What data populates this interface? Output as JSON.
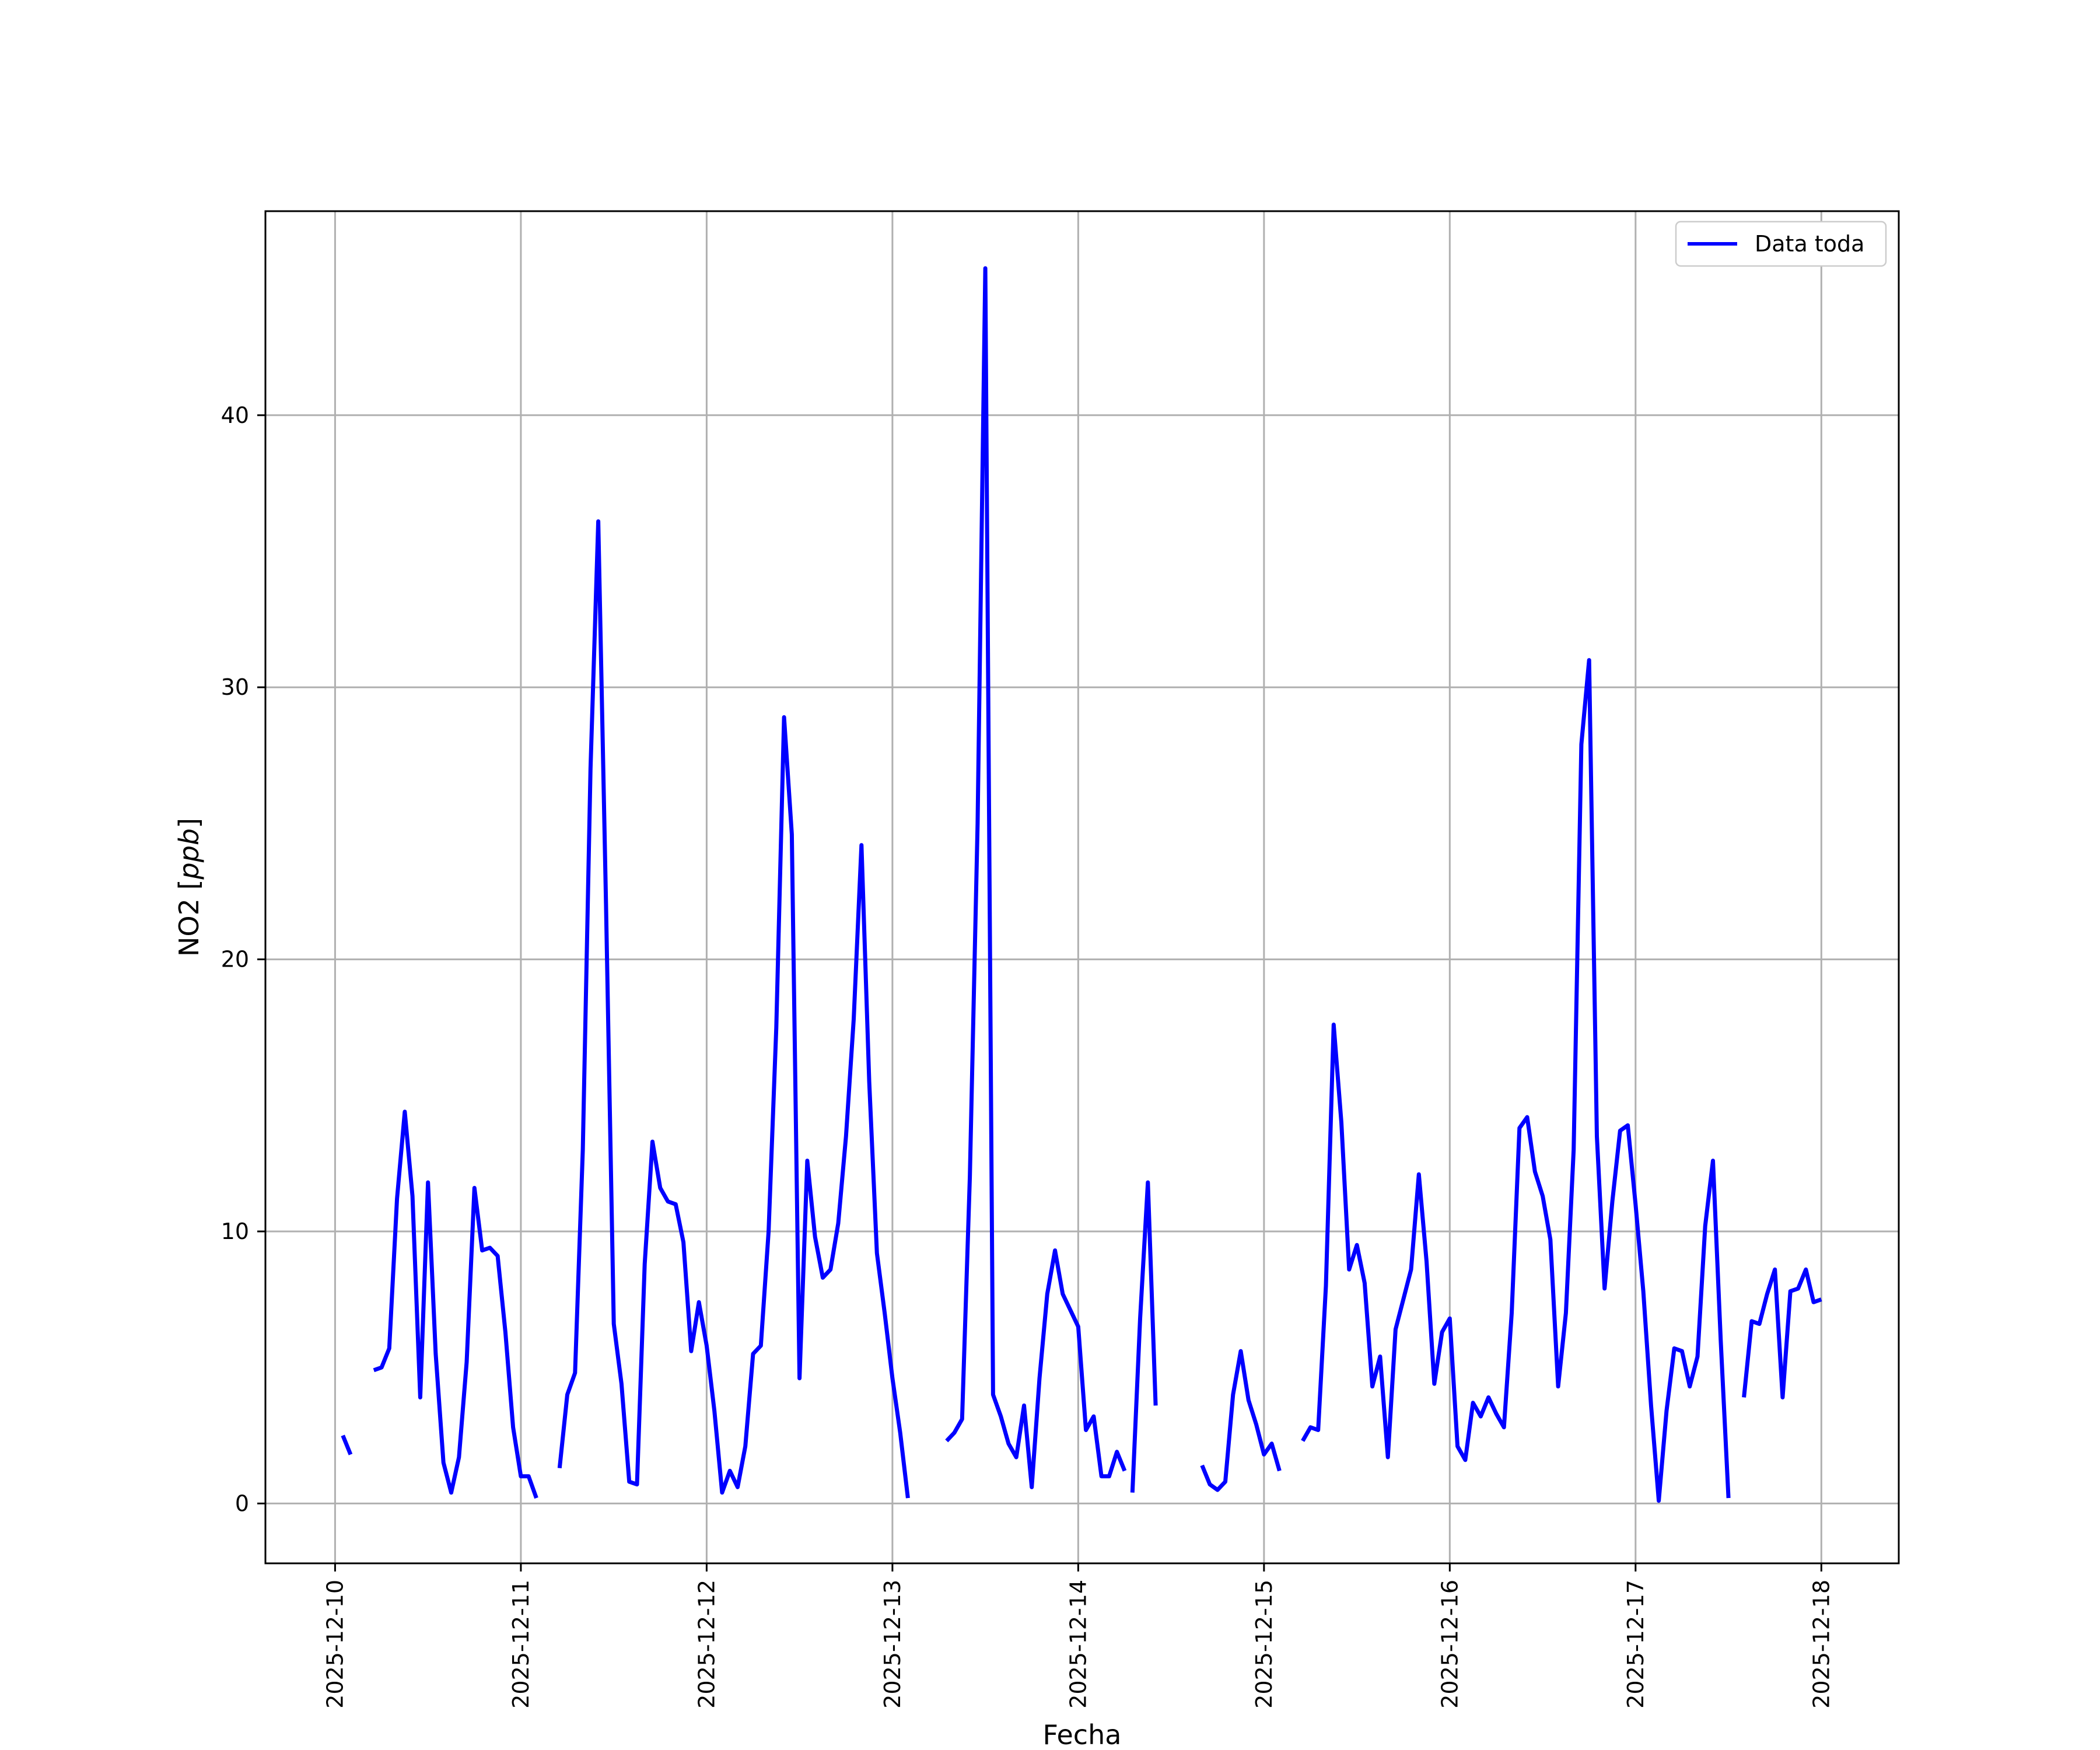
{
  "chart_data": {
    "type": "line",
    "title": "",
    "xlabel": "Fecha",
    "ylabel": "NO2 [ppb]",
    "ylabel_main": "NO2 [",
    "ylabel_unit": "ppb",
    "ylabel_close": "]",
    "x_type": "date",
    "xlim": [
      "2025-12-09 15:00",
      "2025-12-18 10:00"
    ],
    "ylim": [
      -2.2,
      47.5
    ],
    "grid": true,
    "legend_position": "top-right",
    "x_ticks": [
      "2025-12-10",
      "2025-12-11",
      "2025-12-12",
      "2025-12-13",
      "2025-12-14",
      "2025-12-15",
      "2025-12-16",
      "2025-12-17",
      "2025-12-18"
    ],
    "y_ticks": [
      0,
      10,
      20,
      30,
      40
    ],
    "line_color": "#0000ff",
    "series": [
      {
        "name": "Data toda",
        "segments": [
          [
            [
              "2025-12-10 01:00",
              2.5
            ],
            [
              "2025-12-10 02:00",
              1.8
            ]
          ],
          [
            [
              "2025-12-10 05:00",
              4.9
            ],
            [
              "2025-12-10 06:00",
              5.0
            ],
            [
              "2025-12-10 07:00",
              5.7
            ],
            [
              "2025-12-10 08:00",
              11.2
            ],
            [
              "2025-12-10 09:00",
              14.4
            ],
            [
              "2025-12-10 10:00",
              11.3
            ],
            [
              "2025-12-10 11:00",
              3.9
            ],
            [
              "2025-12-10 12:00",
              11.8
            ],
            [
              "2025-12-10 13:00",
              5.5
            ],
            [
              "2025-12-10 14:00",
              1.5
            ],
            [
              "2025-12-10 15:00",
              0.4
            ],
            [
              "2025-12-10 16:00",
              1.7
            ],
            [
              "2025-12-10 17:00",
              5.2
            ],
            [
              "2025-12-10 18:00",
              11.6
            ],
            [
              "2025-12-10 19:00",
              9.3
            ],
            [
              "2025-12-10 20:00",
              9.4
            ],
            [
              "2025-12-10 21:00",
              9.1
            ],
            [
              "2025-12-10 22:00",
              6.3
            ],
            [
              "2025-12-10 23:00",
              2.8
            ],
            [
              "2025-12-11 00:00",
              1.0
            ],
            [
              "2025-12-11 01:00",
              1.0
            ],
            [
              "2025-12-11 02:00",
              0.2
            ]
          ],
          [
            [
              "2025-12-11 05:00",
              1.3
            ],
            [
              "2025-12-11 06:00",
              4.0
            ],
            [
              "2025-12-11 07:00",
              4.8
            ],
            [
              "2025-12-11 08:00",
              13.0
            ],
            [
              "2025-12-11 09:00",
              27.0
            ],
            [
              "2025-12-11 10:00",
              36.1
            ],
            [
              "2025-12-11 11:00",
              22.0
            ],
            [
              "2025-12-11 12:00",
              6.6
            ],
            [
              "2025-12-11 13:00",
              4.4
            ],
            [
              "2025-12-11 14:00",
              0.8
            ],
            [
              "2025-12-11 15:00",
              0.7
            ],
            [
              "2025-12-11 16:00",
              8.8
            ],
            [
              "2025-12-11 17:00",
              13.3
            ],
            [
              "2025-12-11 18:00",
              11.6
            ],
            [
              "2025-12-11 19:00",
              11.1
            ],
            [
              "2025-12-11 20:00",
              11.0
            ],
            [
              "2025-12-11 21:00",
              9.6
            ],
            [
              "2025-12-11 22:00",
              5.6
            ],
            [
              "2025-12-11 23:00",
              7.4
            ],
            [
              "2025-12-12 00:00",
              5.8
            ],
            [
              "2025-12-12 01:00",
              3.4
            ],
            [
              "2025-12-12 02:00",
              0.4
            ],
            [
              "2025-12-12 03:00",
              1.2
            ],
            [
              "2025-12-12 04:00",
              0.6
            ],
            [
              "2025-12-12 05:00",
              2.1
            ],
            [
              "2025-12-12 06:00",
              5.5
            ],
            [
              "2025-12-12 07:00",
              5.8
            ],
            [
              "2025-12-12 08:00",
              10.0
            ],
            [
              "2025-12-12 09:00",
              17.5
            ],
            [
              "2025-12-12 10:00",
              28.9
            ],
            [
              "2025-12-12 11:00",
              24.6
            ],
            [
              "2025-12-12 12:00",
              4.6
            ],
            [
              "2025-12-12 13:00",
              12.6
            ],
            [
              "2025-12-12 14:00",
              9.8
            ],
            [
              "2025-12-12 15:00",
              8.3
            ],
            [
              "2025-12-12 16:00",
              8.6
            ],
            [
              "2025-12-12 17:00",
              10.3
            ],
            [
              "2025-12-12 18:00",
              13.5
            ],
            [
              "2025-12-12 19:00",
              17.8
            ],
            [
              "2025-12-12 20:00",
              24.2
            ],
            [
              "2025-12-12 21:00",
              15.5
            ],
            [
              "2025-12-12 22:00",
              9.2
            ],
            [
              "2025-12-12 23:00",
              7.0
            ],
            [
              "2025-12-13 00:00",
              4.6
            ],
            [
              "2025-12-13 01:00",
              2.6
            ],
            [
              "2025-12-13 02:00",
              0.2
            ]
          ],
          [
            [
              "2025-12-13 07:00",
              2.3
            ],
            [
              "2025-12-13 08:00",
              2.6
            ],
            [
              "2025-12-13 09:00",
              3.1
            ],
            [
              "2025-12-13 10:00",
              12.0
            ],
            [
              "2025-12-13 11:00",
              25.0
            ],
            [
              "2025-12-13 12:00",
              45.4
            ],
            [
              "2025-12-13 13:00",
              4.0
            ],
            [
              "2025-12-13 14:00",
              3.2
            ],
            [
              "2025-12-13 15:00",
              2.2
            ],
            [
              "2025-12-13 16:00",
              1.7
            ],
            [
              "2025-12-13 17:00",
              3.6
            ],
            [
              "2025-12-13 18:00",
              0.6
            ],
            [
              "2025-12-13 19:00",
              4.6
            ],
            [
              "2025-12-13 20:00",
              7.7
            ],
            [
              "2025-12-13 21:00",
              9.3
            ],
            [
              "2025-12-13 22:00",
              7.7
            ],
            [
              "2025-12-13 23:00",
              7.1
            ],
            [
              "2025-12-14 00:00",
              6.5
            ],
            [
              "2025-12-14 01:00",
              2.7
            ],
            [
              "2025-12-14 02:00",
              3.2
            ],
            [
              "2025-12-14 03:00",
              1.0
            ],
            [
              "2025-12-14 04:00",
              1.0
            ],
            [
              "2025-12-14 05:00",
              1.9
            ],
            [
              "2025-12-14 06:00",
              1.2
            ]
          ],
          [
            [
              "2025-12-14 07:00",
              0.4
            ],
            [
              "2025-12-14 08:00",
              6.8
            ],
            [
              "2025-12-14 09:00",
              11.8
            ],
            [
              "2025-12-14 10:00",
              3.6
            ]
          ],
          [
            [
              "2025-12-14 16:00",
              1.4
            ],
            [
              "2025-12-14 17:00",
              0.7
            ],
            [
              "2025-12-14 18:00",
              0.5
            ],
            [
              "2025-12-14 19:00",
              0.8
            ],
            [
              "2025-12-14 20:00",
              4.0
            ],
            [
              "2025-12-14 21:00",
              5.6
            ],
            [
              "2025-12-14 22:00",
              3.8
            ],
            [
              "2025-12-14 23:00",
              2.9
            ],
            [
              "2025-12-15 00:00",
              1.8
            ],
            [
              "2025-12-15 01:00",
              2.2
            ],
            [
              "2025-12-15 02:00",
              1.2
            ]
          ],
          [
            [
              "2025-12-15 05:00",
              2.3
            ],
            [
              "2025-12-15 06:00",
              2.8
            ],
            [
              "2025-12-15 07:00",
              2.7
            ],
            [
              "2025-12-15 08:00",
              8.0
            ],
            [
              "2025-12-15 09:00",
              17.6
            ],
            [
              "2025-12-15 10:00",
              14.0
            ],
            [
              "2025-12-15 11:00",
              8.6
            ],
            [
              "2025-12-15 12:00",
              9.5
            ],
            [
              "2025-12-15 13:00",
              8.1
            ],
            [
              "2025-12-15 14:00",
              4.3
            ],
            [
              "2025-12-15 15:00",
              5.4
            ],
            [
              "2025-12-15 16:00",
              1.7
            ],
            [
              "2025-12-15 17:00",
              6.4
            ],
            [
              "2025-12-15 18:00",
              7.5
            ],
            [
              "2025-12-15 19:00",
              8.6
            ],
            [
              "2025-12-15 20:00",
              12.1
            ],
            [
              "2025-12-15 21:00",
              8.9
            ],
            [
              "2025-12-15 22:00",
              4.4
            ],
            [
              "2025-12-15 23:00",
              6.3
            ],
            [
              "2025-12-16 00:00",
              6.8
            ],
            [
              "2025-12-16 01:00",
              2.1
            ],
            [
              "2025-12-16 02:00",
              1.6
            ],
            [
              "2025-12-16 03:00",
              3.7
            ],
            [
              "2025-12-16 04:00",
              3.2
            ],
            [
              "2025-12-16 05:00",
              3.9
            ],
            [
              "2025-12-16 06:00",
              3.3
            ],
            [
              "2025-12-16 07:00",
              2.8
            ],
            [
              "2025-12-16 08:00",
              7.0
            ],
            [
              "2025-12-16 09:00",
              13.8
            ],
            [
              "2025-12-16 10:00",
              14.2
            ],
            [
              "2025-12-16 11:00",
              12.2
            ],
            [
              "2025-12-16 12:00",
              11.3
            ],
            [
              "2025-12-16 13:00",
              9.7
            ],
            [
              "2025-12-16 14:00",
              4.3
            ],
            [
              "2025-12-16 15:00",
              7.0
            ],
            [
              "2025-12-16 16:00",
              13.0
            ],
            [
              "2025-12-16 17:00",
              27.9
            ],
            [
              "2025-12-16 18:00",
              31.0
            ],
            [
              "2025-12-16 19:00",
              13.5
            ],
            [
              "2025-12-16 20:00",
              7.9
            ],
            [
              "2025-12-16 21:00",
              11.1
            ],
            [
              "2025-12-16 22:00",
              13.7
            ],
            [
              "2025-12-16 23:00",
              13.9
            ],
            [
              "2025-12-17 00:00",
              11.0
            ],
            [
              "2025-12-17 01:00",
              7.8
            ],
            [
              "2025-12-17 02:00",
              3.6
            ],
            [
              "2025-12-17 03:00",
              0.1
            ],
            [
              "2025-12-17 04:00",
              3.4
            ],
            [
              "2025-12-17 05:00",
              5.7
            ],
            [
              "2025-12-17 06:00",
              5.6
            ],
            [
              "2025-12-17 07:00",
              4.3
            ],
            [
              "2025-12-17 08:00",
              5.4
            ],
            [
              "2025-12-17 09:00",
              10.2
            ],
            [
              "2025-12-17 10:00",
              12.6
            ],
            [
              "2025-12-17 11:00",
              6.0
            ],
            [
              "2025-12-17 12:00",
              0.2
            ]
          ],
          [
            [
              "2025-12-17 14:00",
              3.9
            ],
            [
              "2025-12-17 15:00",
              6.7
            ],
            [
              "2025-12-17 16:00",
              6.6
            ],
            [
              "2025-12-17 17:00",
              7.7
            ],
            [
              "2025-12-17 18:00",
              8.6
            ],
            [
              "2025-12-17 19:00",
              3.9
            ],
            [
              "2025-12-17 20:00",
              7.8
            ],
            [
              "2025-12-17 21:00",
              7.9
            ],
            [
              "2025-12-17 22:00",
              8.6
            ],
            [
              "2025-12-17 23:00",
              7.4
            ],
            [
              "2025-12-18 00:00",
              7.5
            ]
          ]
        ]
      }
    ]
  }
}
